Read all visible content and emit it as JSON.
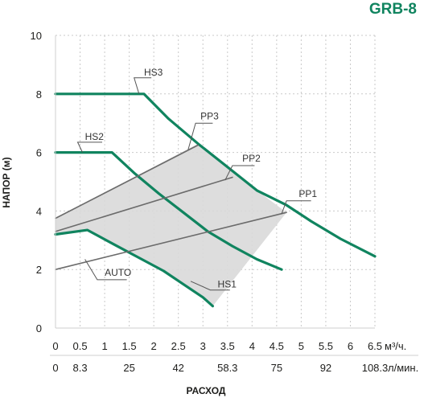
{
  "title": "GRB-8",
  "colors": {
    "accent": "#10845f",
    "grid": "#c9c9c9",
    "pp_line": "#6b6b6b",
    "region_fill": "#d9d9d9",
    "text": "#1d1d1b"
  },
  "chart_data": {
    "type": "line",
    "title": "GRB-8",
    "ylabel": "НАПОР (м)",
    "xlabel": "РАСХОД",
    "xlim": [
      0,
      6.5
    ],
    "ylim": [
      0,
      10
    ],
    "grid": true,
    "x_ticks": [
      "0",
      "0.5",
      "1",
      "1.5",
      "2",
      "2.5",
      "3",
      "3.5",
      "4",
      "4.5",
      "5",
      "5.5",
      "6",
      "6.5"
    ],
    "x_unit": "м³/ч.",
    "x2_ticks": [
      "0",
      "8.3",
      "25",
      "42",
      "58.3",
      "75",
      "92",
      "108.3"
    ],
    "x2_tick_positions": [
      0,
      0.5,
      1.5,
      2.5,
      3.5,
      4.5,
      5.5,
      6.5
    ],
    "x2_unit": "л/мин.",
    "y_ticks": [
      "0",
      "2",
      "4",
      "6",
      "8",
      "10"
    ],
    "series": [
      {
        "name": "HS3",
        "style": "pump",
        "points": [
          [
            0,
            8.0
          ],
          [
            1.8,
            8.0
          ],
          [
            2.3,
            7.15
          ],
          [
            2.9,
            6.3
          ],
          [
            3.5,
            5.5
          ],
          [
            4.1,
            4.7
          ],
          [
            4.7,
            4.2
          ],
          [
            5.2,
            3.65
          ],
          [
            5.8,
            3.05
          ],
          [
            6.5,
            2.45
          ]
        ]
      },
      {
        "name": "HS2",
        "style": "pump",
        "points": [
          [
            0,
            6.0
          ],
          [
            1.15,
            6.0
          ],
          [
            1.6,
            5.3
          ],
          [
            2.1,
            4.6
          ],
          [
            2.6,
            3.95
          ],
          [
            3.1,
            3.3
          ],
          [
            3.6,
            2.8
          ],
          [
            4.1,
            2.35
          ],
          [
            4.6,
            2.0
          ]
        ]
      },
      {
        "name": "HS1",
        "style": "pump",
        "points": [
          [
            0,
            3.2
          ],
          [
            0.65,
            3.35
          ],
          [
            1.2,
            2.85
          ],
          [
            1.7,
            2.4
          ],
          [
            2.2,
            1.95
          ],
          [
            2.6,
            1.5
          ],
          [
            3.0,
            1.05
          ],
          [
            3.2,
            0.75
          ]
        ]
      },
      {
        "name": "PP3",
        "style": "pp",
        "points": [
          [
            0,
            3.75
          ],
          [
            2.9,
            6.25
          ]
        ]
      },
      {
        "name": "PP2",
        "style": "pp",
        "points": [
          [
            0,
            3.3
          ],
          [
            3.6,
            5.15
          ]
        ]
      },
      {
        "name": "PP1",
        "style": "pp",
        "points": [
          [
            0,
            2.0
          ],
          [
            4.7,
            3.95
          ]
        ]
      }
    ],
    "auto_region": [
      [
        0,
        3.2
      ],
      [
        0.65,
        3.35
      ],
      [
        1.2,
        2.85
      ],
      [
        1.7,
        2.4
      ],
      [
        2.2,
        1.95
      ],
      [
        2.6,
        1.5
      ],
      [
        3.0,
        1.05
      ],
      [
        3.2,
        0.75
      ],
      [
        4.7,
        3.95
      ],
      [
        4.1,
        4.7
      ],
      [
        3.5,
        5.5
      ],
      [
        2.9,
        6.3
      ],
      [
        0,
        3.75
      ]
    ],
    "annotations": [
      {
        "text": "HS3",
        "at": [
          1.8,
          8.55
        ],
        "anchor": [
          1.7,
          8.0
        ],
        "elbow": [
          1.6,
          8.55
        ],
        "end": [
          1.95,
          8.55
        ]
      },
      {
        "text": "HS2",
        "at": [
          0.6,
          6.35
        ],
        "anchor": [
          0.55,
          6.0
        ],
        "elbow": [
          0.45,
          6.35
        ],
        "end": [
          0.95,
          6.35
        ]
      },
      {
        "text": "HS1",
        "at": [
          3.3,
          1.3
        ],
        "anchor": [
          2.75,
          1.6
        ],
        "elbow": [
          3.15,
          1.3
        ],
        "end": [
          3.55,
          1.3
        ]
      },
      {
        "text": "PP3",
        "at": [
          2.95,
          7.05
        ],
        "anchor": [
          2.7,
          6.1
        ],
        "elbow": [
          2.85,
          7.0
        ],
        "end": [
          3.2,
          7.0
        ]
      },
      {
        "text": "PP2",
        "at": [
          3.8,
          5.6
        ],
        "anchor": [
          3.45,
          5.05
        ],
        "elbow": [
          3.6,
          5.55
        ],
        "end": [
          4.05,
          5.55
        ]
      },
      {
        "text": "PP1",
        "at": [
          4.95,
          4.4
        ],
        "anchor": [
          4.6,
          3.9
        ],
        "elbow": [
          4.7,
          4.35
        ],
        "end": [
          5.2,
          4.35
        ]
      },
      {
        "text": "AUTO",
        "at": [
          1.0,
          1.7
        ],
        "anchor": [
          0.6,
          2.35
        ],
        "elbow": [
          0.85,
          1.65
        ],
        "end": [
          1.45,
          1.65
        ]
      }
    ]
  }
}
